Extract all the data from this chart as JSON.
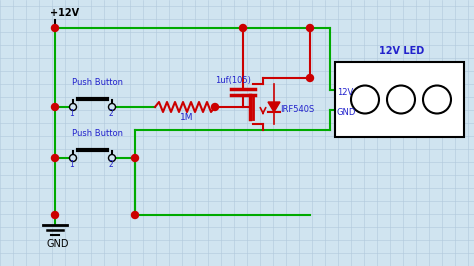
{
  "bg_color": "#d0e4f0",
  "grid_color": "#b0c8dc",
  "wire_green": "#00aa00",
  "wire_red": "#cc0000",
  "dot_color": "#cc0000",
  "text_blue": "#2222cc",
  "vcc_label": "+12V",
  "gnd_label": "GND",
  "led_label": "12V LED",
  "cap_label": "1uf(105)",
  "res_label": "1M",
  "mosfet_label": "IRF540S",
  "btn1_label": "Push Button",
  "btn2_label": "Push Button",
  "led_12v": "12V",
  "led_gnd": "GND",
  "figw": 4.74,
  "figh": 2.66,
  "dpi": 100
}
